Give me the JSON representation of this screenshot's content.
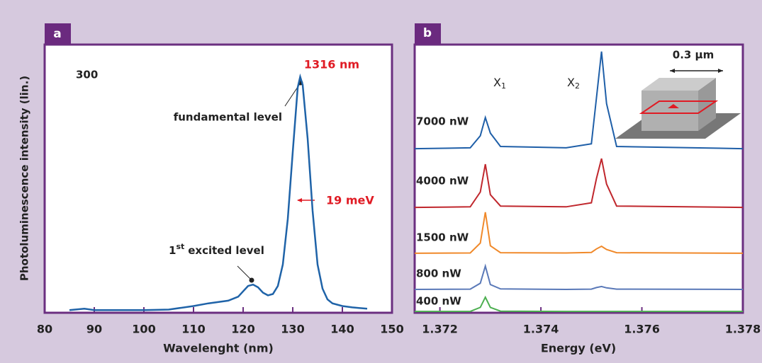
{
  "chart_data": [
    {
      "type": "line",
      "panel_label": "a",
      "xlabel": "Wavelenght (nm)",
      "ylabel": "Photoluminescence intensity (lin.)",
      "x": [
        85,
        88,
        90,
        95,
        100,
        105,
        110,
        113,
        117,
        119,
        120,
        121,
        122,
        123,
        124,
        125,
        126,
        127,
        128,
        129,
        130,
        131,
        131.5,
        132,
        133,
        134,
        135,
        136,
        137,
        138,
        140,
        142,
        145
      ],
      "values": [
        1,
        1.5,
        1,
        1,
        1,
        1.2,
        2.5,
        3.5,
        4.5,
        6,
        8,
        10,
        10.5,
        9.5,
        7.5,
        6.5,
        7,
        10,
        18,
        35,
        60,
        84,
        88,
        85,
        65,
        38,
        18,
        9,
        5,
        3.5,
        2.5,
        2,
        1.5
      ],
      "color": "#1f63a8",
      "xlim": [
        80,
        150
      ],
      "xticks": [
        80,
        90,
        100,
        110,
        120,
        130,
        140,
        150
      ],
      "ylim": [
        0,
        100
      ],
      "text_labels": [
        "300",
        "fundamental level"
      ],
      "red_labels": [
        "1316 nm",
        "19 meV"
      ],
      "excited_label": {
        "number": "1",
        "sup": "st",
        "rest": "excited level"
      }
    },
    {
      "type": "line",
      "panel_label": "b",
      "xlabel": "Energy (eV)",
      "x": [
        1.3715,
        1.3726,
        1.3728,
        1.3729,
        1.373,
        1.3732,
        1.3745,
        1.375,
        1.3751,
        1.3752,
        1.3753,
        1.3755,
        1.378
      ],
      "series": [
        {
          "name": "7000 nW",
          "color": "#1f5fa8",
          "values": [
            61.2,
            61.5,
            66,
            72.8,
            67,
            62,
            61.5,
            63,
            80,
            97.4,
            78,
            62,
            61.2
          ]
        },
        {
          "name": "4000 nW",
          "color": "#c0272d",
          "values": [
            39.3,
            39.5,
            45,
            55.4,
            44,
            39.8,
            39.5,
            41,
            50,
            57.5,
            48,
            39.8,
            39.3
          ]
        },
        {
          "name": "1500 nW",
          "color": "#f0892a",
          "values": [
            22.2,
            22.3,
            26,
            37.5,
            25,
            22.4,
            22.3,
            22.5,
            23.8,
            24.8,
            23.6,
            22.4,
            22.2
          ]
        },
        {
          "name": "800 nW",
          "color": "#5a79b8",
          "values": [
            8.7,
            8.8,
            11,
            17.4,
            10.5,
            8.9,
            8.7,
            8.8,
            9.4,
            9.8,
            9.3,
            8.8,
            8.7
          ]
        },
        {
          "name": "400 nW",
          "color": "#4caf50",
          "values": [
            0.5,
            0.5,
            2,
            5.8,
            2,
            0.6,
            0.5,
            0.5,
            0.5,
            0.5,
            0.5,
            0.5,
            0.5
          ]
        }
      ],
      "xlim": [
        1.3715,
        1.378
      ],
      "xticks": [
        1.372,
        1.374,
        1.376,
        1.378
      ],
      "ylim": [
        0,
        100
      ],
      "peak_labels": [
        {
          "letter": "X",
          "sub": "1"
        },
        {
          "letter": "X",
          "sub": "2"
        }
      ],
      "scale_label": "0.3 µm"
    }
  ]
}
